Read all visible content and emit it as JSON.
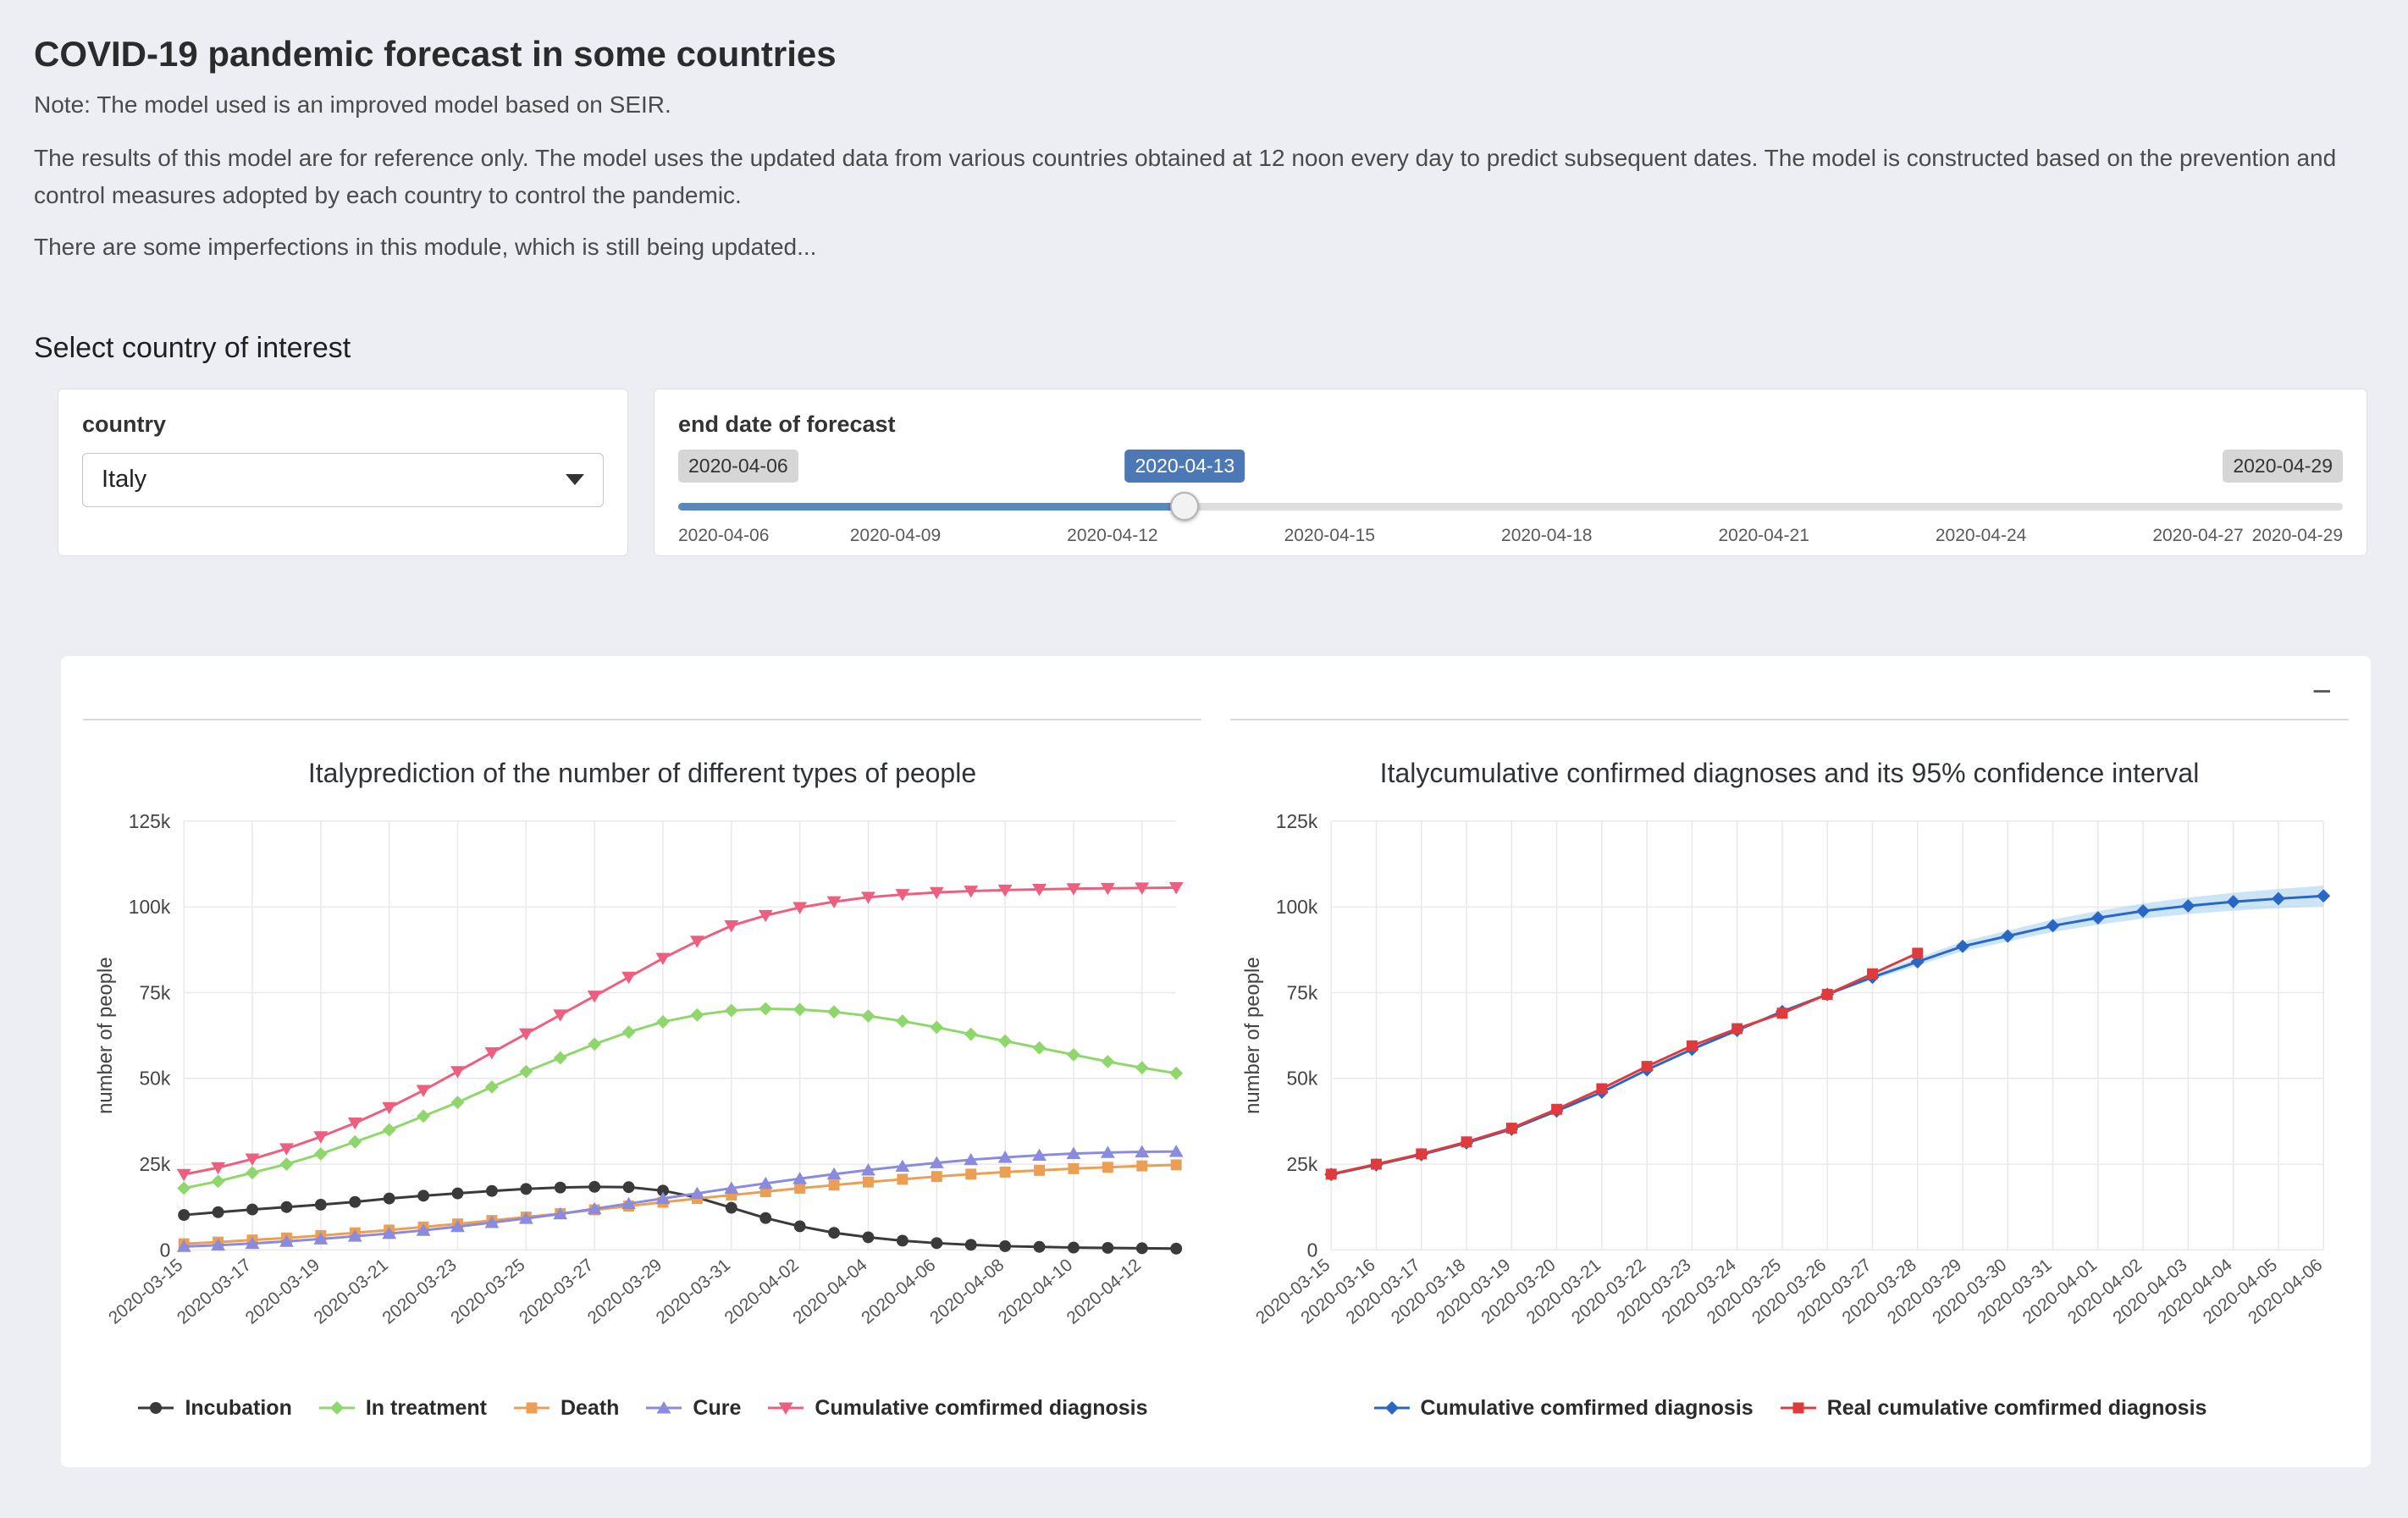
{
  "page": {
    "title": "COVID-19 pandemic forecast in some countries",
    "note": "Note: The model used is an improved model based on SEIR.",
    "description": "The results of this model are for reference only. The model uses the updated data from various countries obtained at 12 noon every day to predict subsequent dates. The model is constructed based on the prevention and control measures adopted by each country to control the pandemic.",
    "update_note": "There are some imperfections in this module, which is still being updated..."
  },
  "controls": {
    "section_title": "Select country of interest",
    "country": {
      "label": "country",
      "value": "Italy"
    },
    "forecast": {
      "label": "end date of forecast",
      "min_label": "2020-04-06",
      "current_label": "2020-04-13",
      "max_label": "2020-04-29",
      "ticks": [
        "2020-04-06",
        "2020-04-09",
        "2020-04-12",
        "2020-04-15",
        "2020-04-18",
        "2020-04-21",
        "2020-04-24",
        "2020-04-27",
        "2020-04-29"
      ],
      "accent_color": "#5988bb",
      "badge_active_bg": "#4c78b5"
    }
  },
  "panel": {
    "collapse_label": "−"
  },
  "chart_data": [
    {
      "type": "line",
      "title": "Italyprediction of the number of different types of people",
      "ylabel": "number of people",
      "ylim": [
        0,
        125000
      ],
      "yticks": [
        0,
        25000,
        50000,
        75000,
        100000,
        125000
      ],
      "ytick_labels": [
        "0",
        "25k",
        "50k",
        "75k",
        "100k",
        "125k"
      ],
      "xtick_every": 2,
      "grid": true,
      "legend_position": "bottom",
      "x": [
        "2020-03-15",
        "2020-03-16",
        "2020-03-17",
        "2020-03-18",
        "2020-03-19",
        "2020-03-20",
        "2020-03-21",
        "2020-03-22",
        "2020-03-23",
        "2020-03-24",
        "2020-03-25",
        "2020-03-26",
        "2020-03-27",
        "2020-03-28",
        "2020-03-29",
        "2020-03-30",
        "2020-03-31",
        "2020-04-01",
        "2020-04-02",
        "2020-04-03",
        "2020-04-04",
        "2020-04-05",
        "2020-04-06",
        "2020-04-07",
        "2020-04-08",
        "2020-04-09",
        "2020-04-10",
        "2020-04-11",
        "2020-04-12",
        "2020-04-13"
      ],
      "series": [
        {
          "name": "Incubation",
          "color": "#3a3a3a",
          "marker": "circle",
          "values": [
            10200,
            11000,
            11800,
            12500,
            13200,
            14000,
            15000,
            15800,
            16500,
            17200,
            17800,
            18200,
            18400,
            18300,
            17300,
            15300,
            12300,
            9300,
            6900,
            5000,
            3700,
            2700,
            2000,
            1500,
            1100,
            900,
            700,
            600,
            500,
            400
          ]
        },
        {
          "name": "In treatment",
          "color": "#8fd76c",
          "marker": "diamond",
          "values": [
            18000,
            20000,
            22500,
            25000,
            28000,
            31500,
            35000,
            39000,
            43000,
            47500,
            52000,
            56000,
            60000,
            63500,
            66500,
            68500,
            69800,
            70300,
            70100,
            69400,
            68200,
            66700,
            64900,
            62900,
            60900,
            58900,
            56900,
            54900,
            53100,
            51500
          ]
        },
        {
          "name": "Death",
          "color": "#eb9f55",
          "marker": "square",
          "values": [
            1800,
            2300,
            2900,
            3500,
            4200,
            5000,
            5800,
            6700,
            7600,
            8600,
            9600,
            10600,
            11700,
            12800,
            13900,
            15000,
            16000,
            17000,
            18000,
            18900,
            19800,
            20600,
            21400,
            22100,
            22700,
            23200,
            23700,
            24100,
            24500,
            24800
          ]
        },
        {
          "name": "Cure",
          "color": "#8a8ade",
          "marker": "triangle-up",
          "values": [
            1000,
            1400,
            1900,
            2500,
            3200,
            4000,
            4800,
            5700,
            6800,
            8000,
            9200,
            10500,
            12000,
            13500,
            15000,
            16500,
            18000,
            19400,
            20800,
            22100,
            23300,
            24400,
            25400,
            26300,
            27000,
            27600,
            28100,
            28400,
            28600,
            28700
          ]
        },
        {
          "name": "Cumulative comfirmed diagnosis",
          "color": "#ec5f7e",
          "marker": "triangle-down",
          "values": [
            22000,
            24000,
            26500,
            29500,
            33000,
            37000,
            41500,
            46500,
            52000,
            57500,
            63000,
            68500,
            74000,
            79500,
            85000,
            90000,
            94500,
            97500,
            99800,
            101500,
            102800,
            103600,
            104200,
            104600,
            104900,
            105100,
            105300,
            105400,
            105500,
            105600
          ]
        }
      ]
    },
    {
      "type": "line",
      "title": "Italycumulative confirmed diagnoses and its 95% confidence interval",
      "ylabel": "number of people",
      "ylim": [
        0,
        125000
      ],
      "yticks": [
        0,
        25000,
        50000,
        75000,
        100000,
        125000
      ],
      "ytick_labels": [
        "0",
        "25k",
        "50k",
        "75k",
        "100k",
        "125k"
      ],
      "xtick_every": 1,
      "grid": true,
      "legend_position": "bottom",
      "x": [
        "2020-03-15",
        "2020-03-16",
        "2020-03-17",
        "2020-03-18",
        "2020-03-19",
        "2020-03-20",
        "2020-03-21",
        "2020-03-22",
        "2020-03-23",
        "2020-03-24",
        "2020-03-25",
        "2020-03-26",
        "2020-03-27",
        "2020-03-28",
        "2020-03-29",
        "2020-03-30",
        "2020-03-31",
        "2020-04-01",
        "2020-04-02",
        "2020-04-03",
        "2020-04-04",
        "2020-04-05",
        "2020-04-06"
      ],
      "band": {
        "label": "95% confidence interval",
        "color": "#a9d3f0",
        "opacity": 0.6,
        "upper": [
          22000,
          24800,
          27800,
          31200,
          35200,
          40500,
          46000,
          52500,
          58500,
          64000,
          69500,
          74800,
          80200,
          85100,
          89900,
          93100,
          96300,
          98800,
          101000,
          102700,
          104100,
          105200,
          106200
        ],
        "lower": [
          22000,
          24800,
          27800,
          31200,
          35200,
          40500,
          46000,
          52500,
          58500,
          64000,
          69500,
          74200,
          78800,
          82900,
          87100,
          89900,
          92700,
          94800,
          96600,
          97900,
          98900,
          99600,
          100200
        ]
      },
      "series": [
        {
          "name": "Cumulative comfirmed diagnosis",
          "color": "#2a66c4",
          "marker": "diamond",
          "values": [
            22000,
            24800,
            27800,
            31200,
            35200,
            40500,
            46000,
            52500,
            58500,
            64000,
            69500,
            74500,
            79500,
            84000,
            88500,
            91500,
            94500,
            96800,
            98800,
            100300,
            101500,
            102400,
            103200
          ]
        },
        {
          "name": "Real cumulative comfirmed diagnosis",
          "color": "#df3b3d",
          "marker": "square",
          "values": [
            22100,
            25000,
            28000,
            31500,
            35500,
            41000,
            47000,
            53500,
            59500,
            64500,
            69000,
            74500,
            80500,
            86500
          ]
        }
      ]
    }
  ]
}
